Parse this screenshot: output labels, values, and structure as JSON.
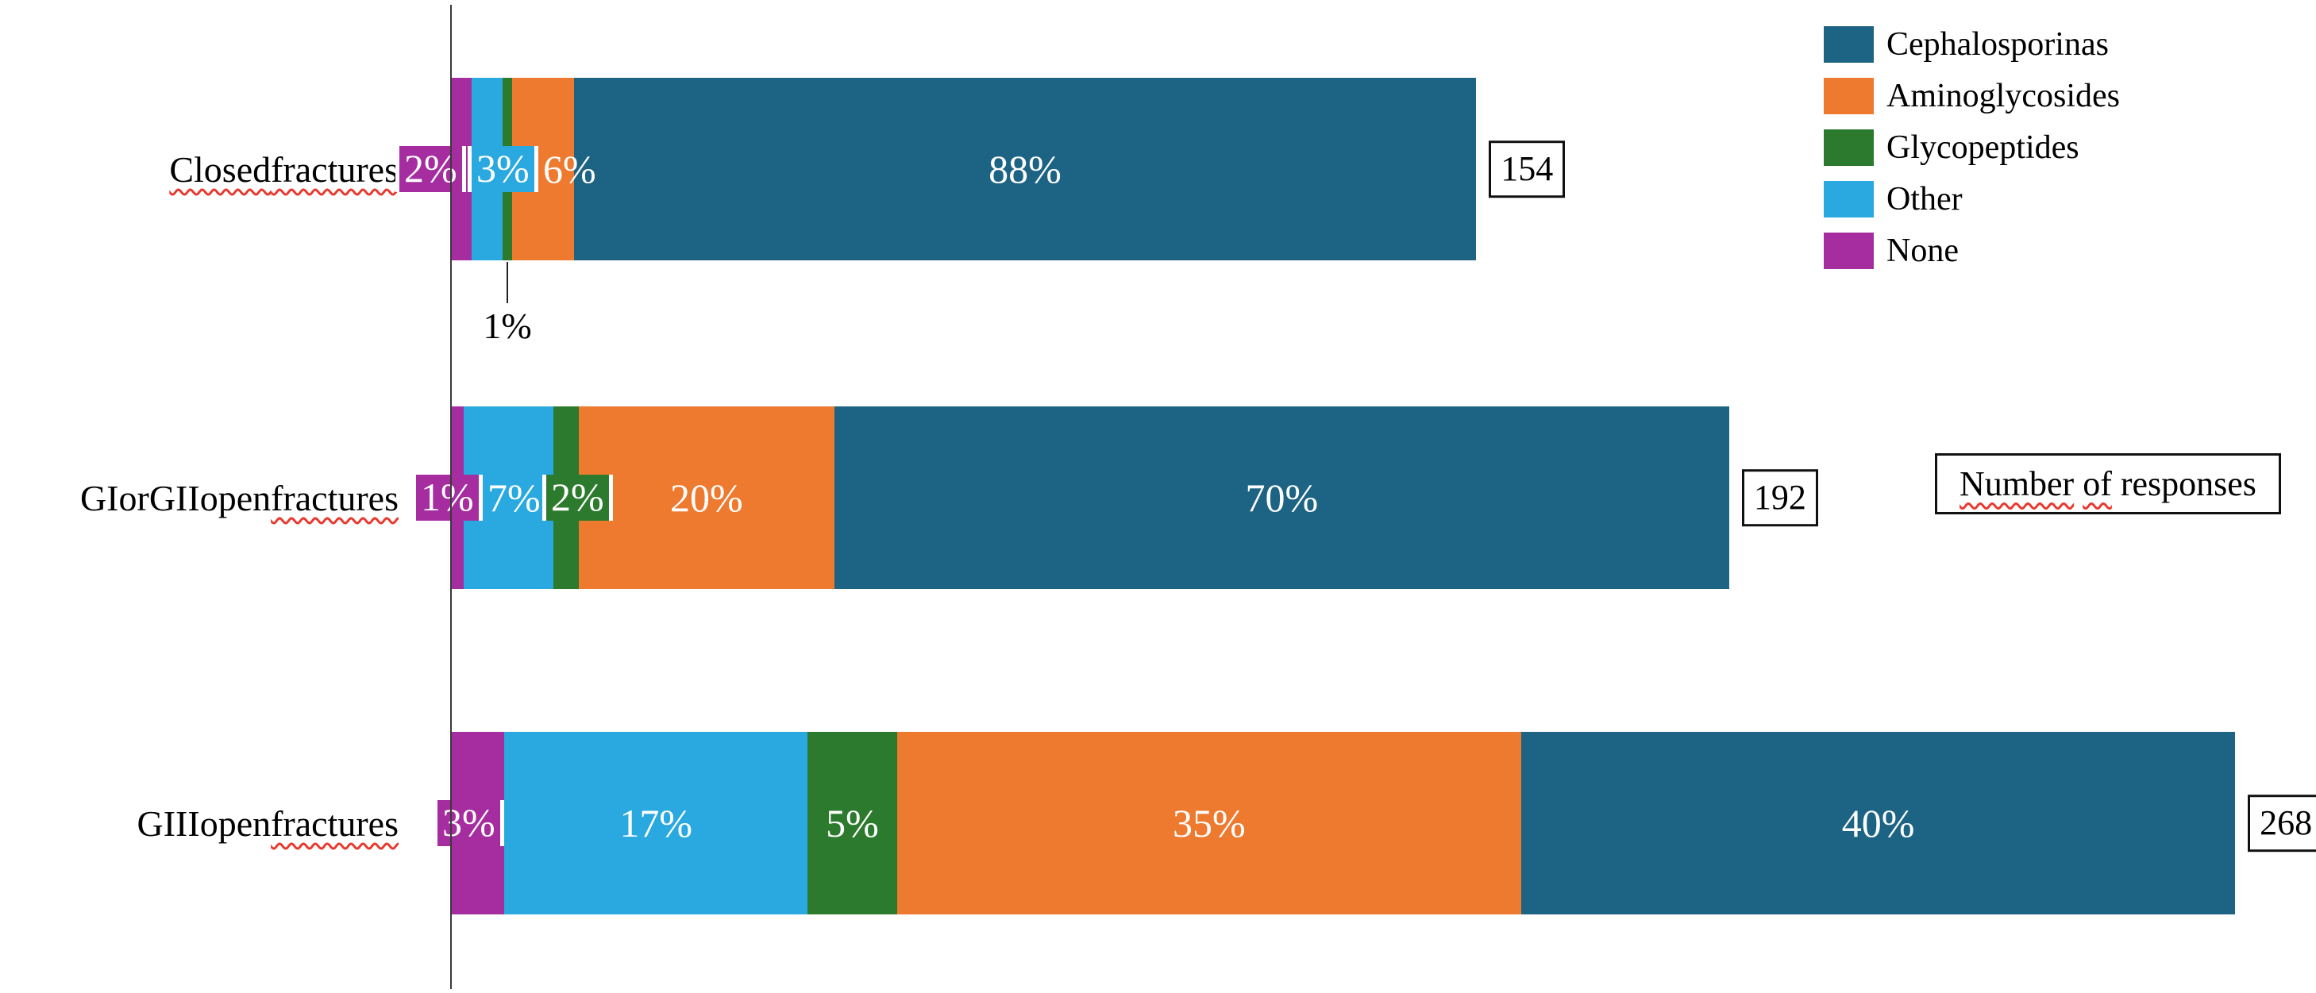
{
  "chart_data": {
    "type": "bar",
    "orientation": "horizontal",
    "stacked": true,
    "value_unit": "%",
    "bar_length_proportional_to": "responses",
    "legend_position": "top-right",
    "grid": false,
    "legend": [
      "Cephalosporinas",
      "Aminoglycosides",
      "Glycopeptides",
      "Other",
      "None"
    ],
    "colors": {
      "Cephalosporinas": "#1d6384",
      "Aminoglycosides": "#ed7a2f",
      "Glycopeptides": "#2c7a2d",
      "Other": "#29a9e0",
      "None": "#a62da0"
    },
    "categories": [
      "Closed fractures",
      "GI or GII open fractures",
      "GIII open fractures"
    ],
    "responses": [
      154,
      192,
      268
    ],
    "series": [
      {
        "name": "Cephalosporinas",
        "values": [
          88,
          70,
          40
        ]
      },
      {
        "name": "Aminoglycosides",
        "values": [
          6,
          20,
          35
        ]
      },
      {
        "name": "Glycopeptides",
        "values": [
          1,
          2,
          5
        ]
      },
      {
        "name": "Other",
        "values": [
          3,
          7,
          17
        ]
      },
      {
        "name": "None",
        "values": [
          2,
          1,
          3
        ]
      }
    ],
    "stack_order_left_to_right": [
      "None",
      "Other",
      "Glycopeptides",
      "Aminoglycosides",
      "Cephalosporinas"
    ],
    "bars": [
      {
        "category_tokens": [
          {
            "t": "Closed",
            "sq": true
          },
          {
            "t": "fractures",
            "sq": true
          }
        ],
        "count": "154",
        "segments": [
          {
            "series": "None",
            "pct": 2,
            "label": "2%",
            "style": "chip"
          },
          {
            "series": "Other",
            "pct": 3,
            "label": "3%",
            "style": "chip"
          },
          {
            "series": "Glycopeptides",
            "pct": 1,
            "label": "1%",
            "style": "below"
          },
          {
            "series": "Aminoglycosides",
            "pct": 6,
            "label": "6%",
            "style": "inside"
          },
          {
            "series": "Cephalosporinas",
            "pct": 88,
            "label": "88%",
            "style": "inside"
          }
        ]
      },
      {
        "category_tokens": [
          {
            "t": "GI",
            "sq": false
          },
          {
            "t": "or",
            "sq": false
          },
          {
            "t": "GII",
            "sq": false
          },
          {
            "t": "open",
            "sq": false
          },
          {
            "t": "fractures",
            "sq": true
          }
        ],
        "count": "192",
        "segments": [
          {
            "series": "None",
            "pct": 1,
            "label": "1%",
            "style": "chip"
          },
          {
            "series": "Other",
            "pct": 7,
            "label": "7%",
            "style": "inside"
          },
          {
            "series": "Glycopeptides",
            "pct": 2,
            "label": "2%",
            "style": "chip"
          },
          {
            "series": "Aminoglycosides",
            "pct": 20,
            "label": "20%",
            "style": "inside"
          },
          {
            "series": "Cephalosporinas",
            "pct": 70,
            "label": "70%",
            "style": "inside"
          }
        ]
      },
      {
        "category_tokens": [
          {
            "t": "GIII",
            "sq": false
          },
          {
            "t": "open",
            "sq": false
          },
          {
            "t": "fractures",
            "sq": true
          }
        ],
        "count": "268",
        "segments": [
          {
            "series": "None",
            "pct": 3,
            "label": "3%",
            "style": "chip"
          },
          {
            "series": "Other",
            "pct": 17,
            "label": "17%",
            "style": "inside"
          },
          {
            "series": "Glycopeptides",
            "pct": 5,
            "label": "5%",
            "style": "inside"
          },
          {
            "series": "Aminoglycosides",
            "pct": 35,
            "label": "35%",
            "style": "inside"
          },
          {
            "series": "Cephalosporinas",
            "pct": 40,
            "label": "40%",
            "style": "inside"
          }
        ]
      }
    ],
    "annotation": {
      "text": "1%",
      "points_to": "Glycopeptides segment of Closed fractures"
    },
    "note_box_tokens": [
      {
        "t": "Number",
        "sq": true
      },
      {
        "t": "of",
        "sq": true
      },
      {
        "t": "responses",
        "sq": false
      }
    ],
    "squiggle_color": "#e8392e",
    "axis_color": "#3a3a3a"
  }
}
